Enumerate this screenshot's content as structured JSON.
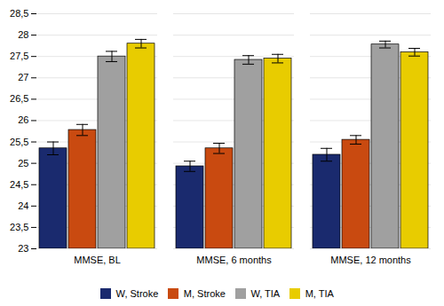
{
  "chart_data": {
    "type": "bar",
    "categories": [
      "MMSE, BL",
      "MMSE, 6 months",
      "MMSE, 12 months"
    ],
    "series": [
      {
        "name": "W, Stroke",
        "color": "#1a2a6e",
        "values": [
          25.35,
          24.93,
          25.2
        ],
        "errors": [
          0.15,
          0.12,
          0.15
        ]
      },
      {
        "name": "M, Stroke",
        "color": "#c94a10",
        "values": [
          25.78,
          25.35,
          25.55
        ],
        "errors": [
          0.13,
          0.12,
          0.1
        ]
      },
      {
        "name": "W, TIA",
        "color": "#a0a0a0",
        "values": [
          27.5,
          27.42,
          27.78
        ],
        "errors": [
          0.12,
          0.1,
          0.08
        ]
      },
      {
        "name": "M, TIA",
        "color": "#e8cc00",
        "values": [
          27.8,
          27.45,
          27.6
        ],
        "errors": [
          0.1,
          0.1,
          0.09
        ]
      }
    ],
    "ylim": [
      23,
      28.5
    ],
    "yticks": [
      23,
      {
        "value": 23.5,
        "label": "23,5"
      },
      24,
      {
        "value": 24.5,
        "label": "24,5"
      },
      25,
      {
        "value": 25.5,
        "label": "25,5"
      },
      26,
      {
        "value": 26.5,
        "label": "26,5"
      },
      27,
      {
        "value": 27.5,
        "label": "27,5"
      },
      28,
      {
        "value": 28.5,
        "label": "28,5"
      }
    ],
    "grid": true,
    "legend": "bottom"
  }
}
